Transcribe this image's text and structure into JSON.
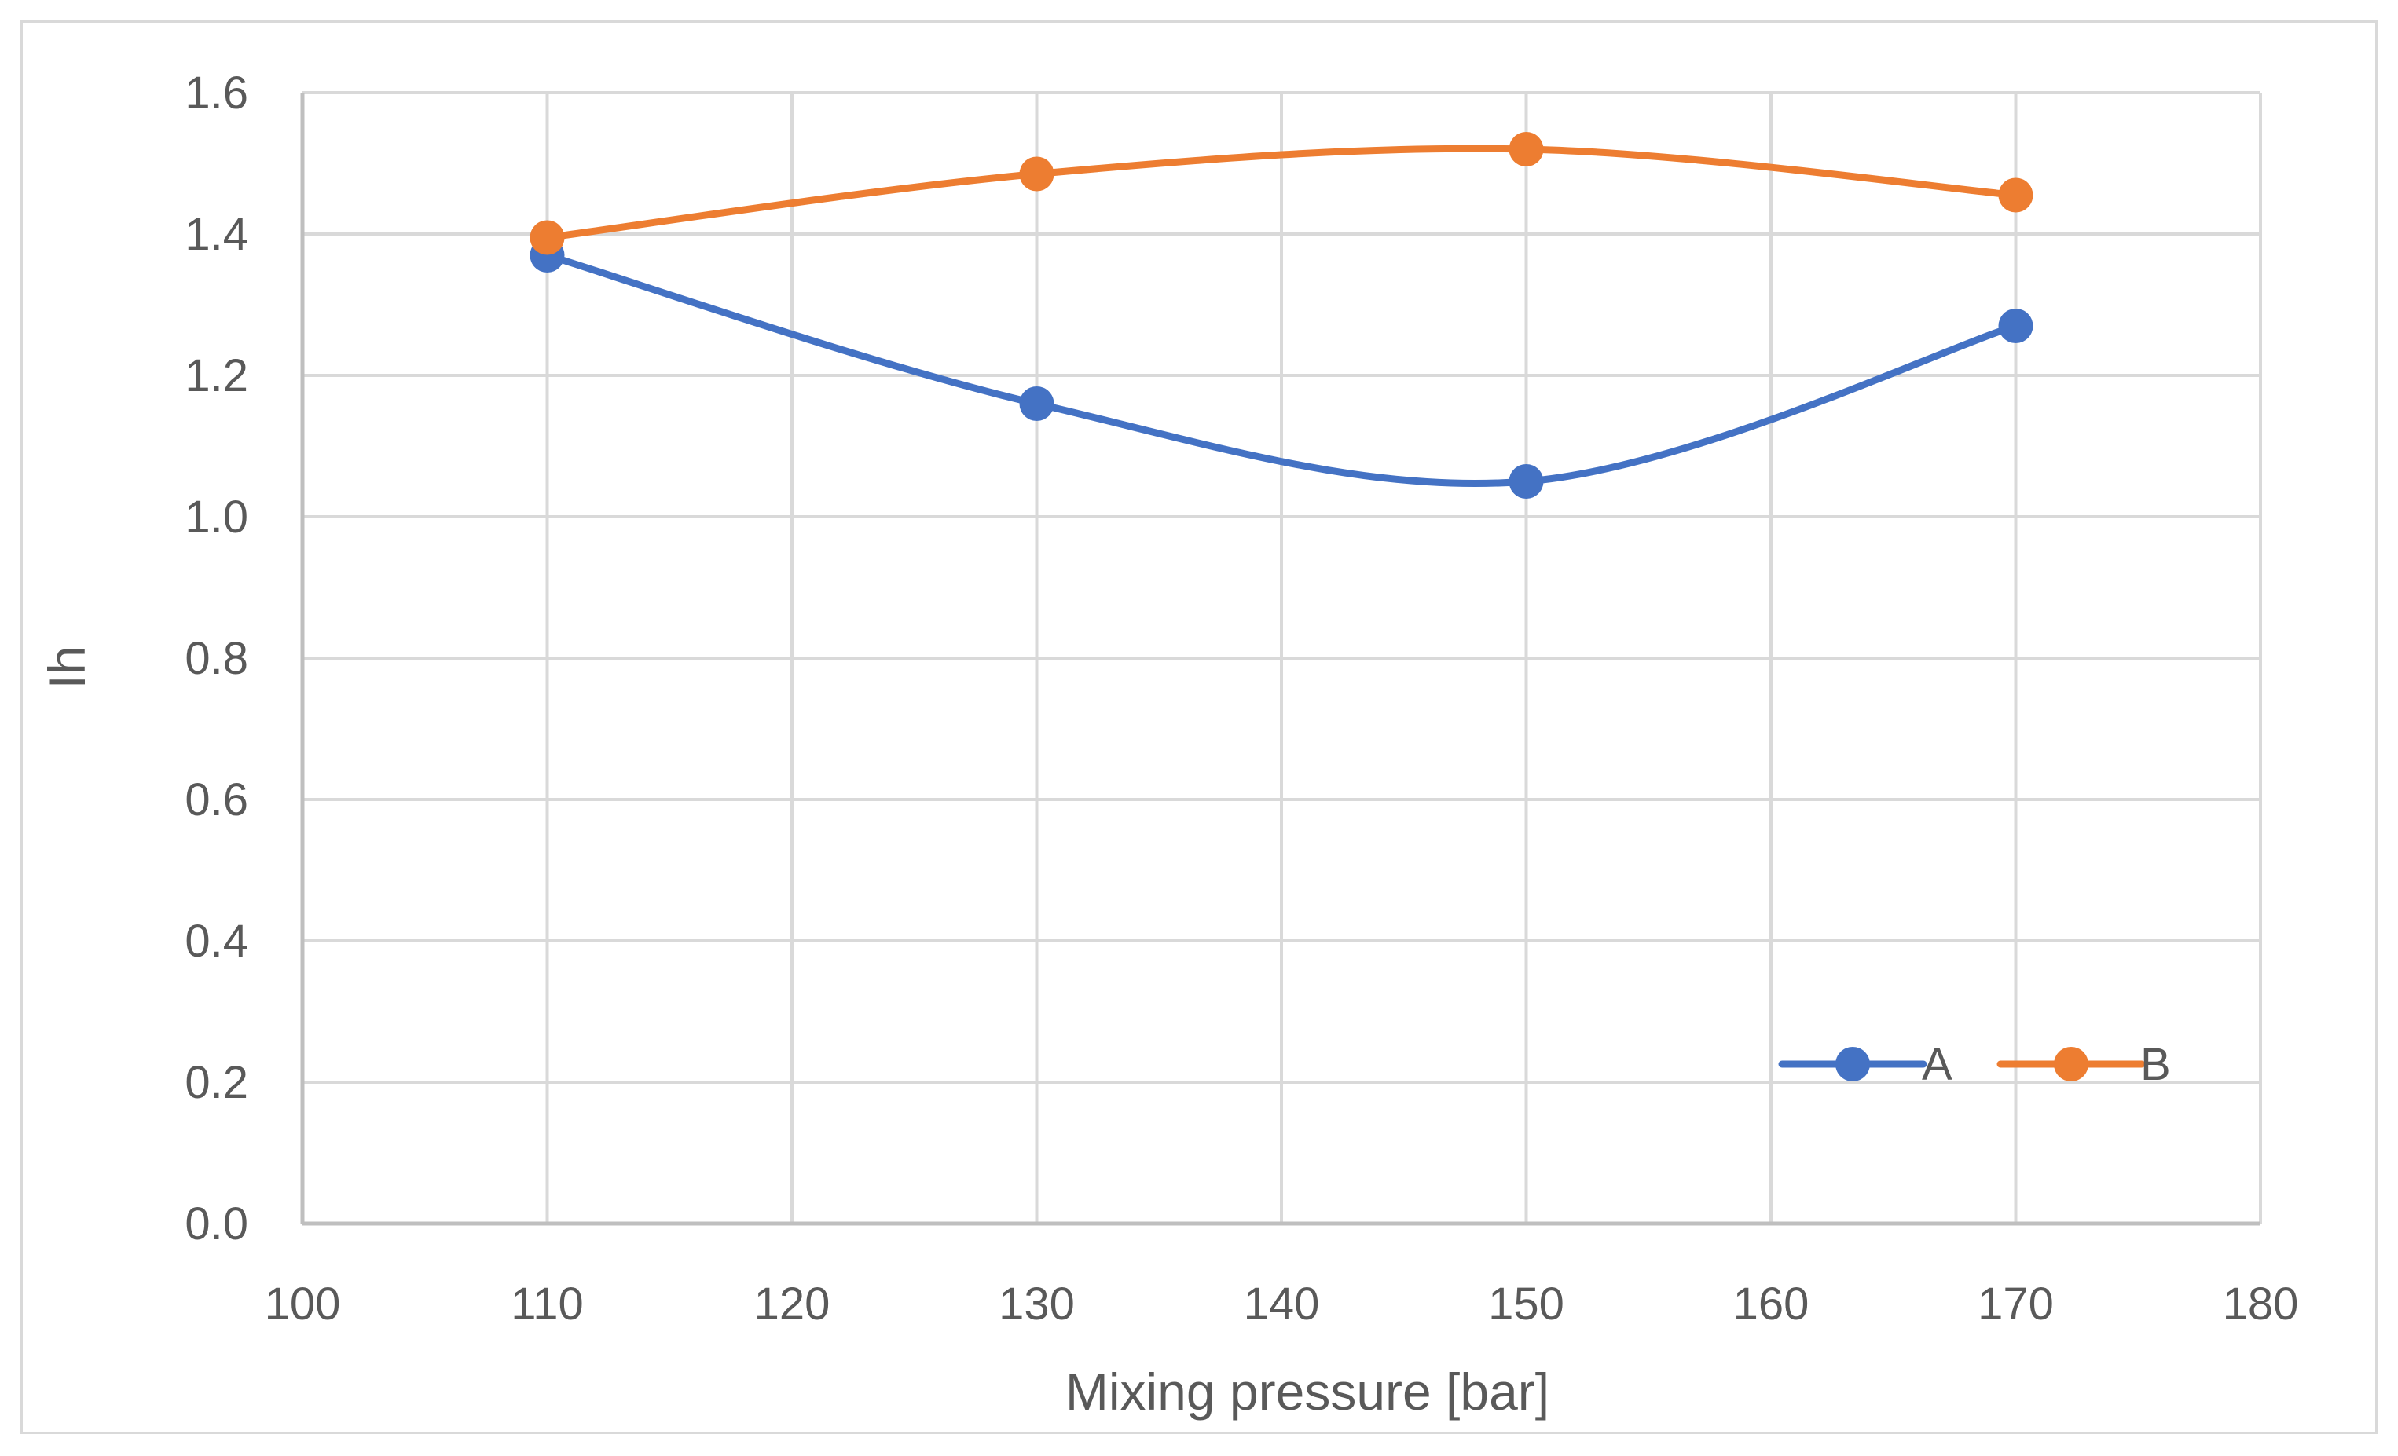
{
  "chart_data": {
    "type": "line",
    "title": "",
    "xlabel": "Mixing pressure [bar]",
    "ylabel": "Ih",
    "xlim": [
      100,
      180
    ],
    "ylim": [
      0.0,
      1.6
    ],
    "grid": true,
    "x_ticks": [
      "100",
      "110",
      "120",
      "130",
      "140",
      "150",
      "160",
      "170",
      "180"
    ],
    "y_ticks": [
      "0.0",
      "0.2",
      "0.4",
      "0.6",
      "0.8",
      "1.0",
      "1.2",
      "1.4",
      "1.6"
    ],
    "x": [
      110,
      130,
      150,
      170
    ],
    "series": [
      {
        "name": "A",
        "color": "#4472c4",
        "values": [
          1.37,
          1.16,
          1.05,
          1.27
        ]
      },
      {
        "name": "B",
        "color": "#ed7d31",
        "values": [
          1.395,
          1.485,
          1.52,
          1.455
        ]
      }
    ],
    "legend_position": "bottom-right"
  }
}
